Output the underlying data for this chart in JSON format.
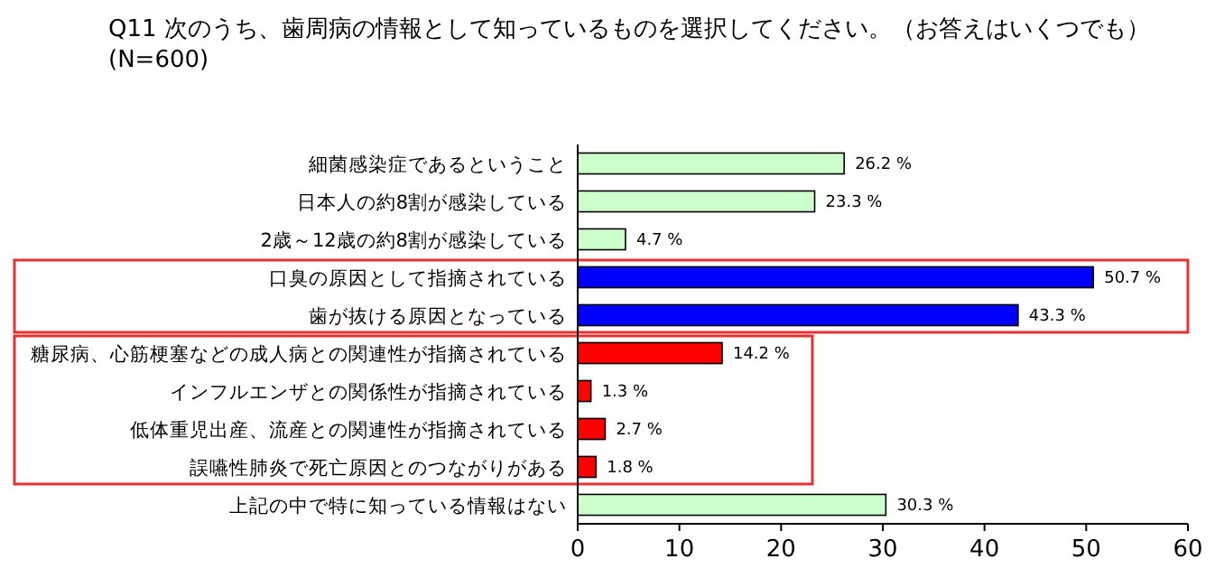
{
  "chart_data": {
    "type": "bar",
    "orientation": "horizontal",
    "title": "Q11 次のうち、歯周病の情報として知っているものを選択してください。（お答えはいくつでも）(N=600)",
    "categories": [
      "細菌感染症であるということ",
      "日本人の約8割が感染している",
      "2歳～12歳の約8割が感染している",
      "口臭の原因として指摘されている",
      "歯が抜ける原因となっている",
      "糖尿病、心筋梗塞などの成人病との関連性が指摘されている",
      "インフルエンザとの関係性が指摘されている",
      "低体重児出産、流産との関連性が指摘されている",
      "誤嚥性肺炎で死亡原因とのつながりがある",
      "上記の中で特に知っている情報はない"
    ],
    "values": [
      26.2,
      23.3,
      4.7,
      50.7,
      43.3,
      14.2,
      1.3,
      2.7,
      1.8,
      30.3
    ],
    "colors": [
      "#ccffcc",
      "#ccffcc",
      "#ccffcc",
      "#0000ff",
      "#0000ff",
      "#ff0000",
      "#ff0000",
      "#ff0000",
      "#ff0000",
      "#ccffcc"
    ],
    "value_labels": [
      "26.2 %",
      "23.3 %",
      "4.7 %",
      "50.7 %",
      "43.3 %",
      "14.2 %",
      "1.3 %",
      "2.7 %",
      "1.8 %",
      "30.3 %"
    ],
    "xlim": [
      0,
      60
    ],
    "xticks": [
      0,
      10,
      20,
      30,
      40,
      50,
      60
    ]
  }
}
